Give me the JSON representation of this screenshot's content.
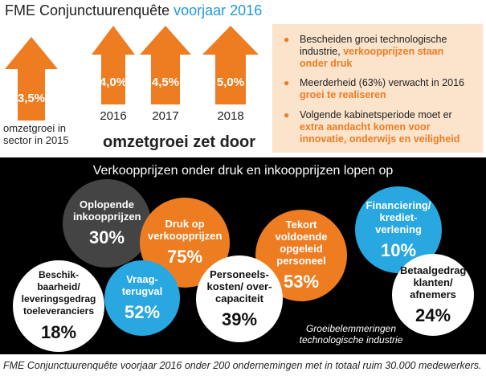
{
  "header": {
    "title_main": "FME Conjunctuurenquête",
    "title_accent": "voorjaar 2016"
  },
  "colors": {
    "orange": "#ee7d22",
    "blue": "#28a7e1",
    "grey": "#444444",
    "panel_bg": "#fbe3cc"
  },
  "growth": {
    "sector_value": "3,5%",
    "sector_note_line1": "omzetgroei in",
    "sector_note_line2": "sector in 2015",
    "arrows": [
      {
        "value": "4,0%",
        "year": "2016"
      },
      {
        "value": "4,5%",
        "year": "2017"
      },
      {
        "value": "5,0%",
        "year": "2018"
      }
    ],
    "title": "omzetgroei zet door"
  },
  "bullets": [
    {
      "plain": "Bescheiden groei technologische industrie, ",
      "highlight": "verkoopprijzen staan onder druk"
    },
    {
      "plain": "Meerderheid (63%) verwacht in 2016 ",
      "highlight": "groei te realiseren"
    },
    {
      "plain": "Volgende kabinetsperiode moet er ",
      "highlight": "extra aandacht komen voor innovatie, onderwijs en veiligheid"
    }
  ],
  "obstacles": {
    "title": "Verkoopprijzen onder druk en inkoopprijzen lopen op",
    "note_line1": "Groeibelemmeringen",
    "note_line2": "technologische industrie",
    "bubbles": [
      {
        "label": "Oplopende inkoopprijzen",
        "value": "30%"
      },
      {
        "label": "Druk op verkoopprijzen",
        "value": "75%"
      },
      {
        "label": "Tekort voldoende opgeleid personeel",
        "value": "53%"
      },
      {
        "label": "Financiering/ krediet- verlening",
        "value": "10%"
      },
      {
        "label": "Beschik- baarheid/ leveringsgedrag toeleveranciers",
        "value": "18%"
      },
      {
        "label": "Vraag- terugval",
        "value": "52%"
      },
      {
        "label": "Personeels- kosten/ over- capaciteit",
        "value": "39%"
      },
      {
        "label": "Betaalgedrag klanten/ afnemers",
        "value": "24%"
      }
    ]
  },
  "footer": "FME Conjunctuurenquête voorjaar 2016 onder 200 ondernemingen met in totaal ruim 30.000 medewerkers."
}
